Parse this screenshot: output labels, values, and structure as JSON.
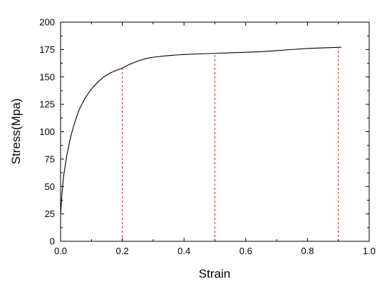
{
  "chart_data": {
    "type": "line",
    "title": "",
    "xlabel": "Strain",
    "ylabel": "Stress(Mpa)",
    "xlim": [
      0.0,
      1.0
    ],
    "ylim": [
      0,
      200
    ],
    "xticks": [
      "0.0",
      "0.2",
      "0.4",
      "0.6",
      "0.8",
      "1.0"
    ],
    "yticks": [
      "0",
      "25",
      "50",
      "75",
      "100",
      "125",
      "150",
      "175",
      "200"
    ],
    "grid": false,
    "legend": "none",
    "series": [
      {
        "color": "#000000",
        "x": [
          0.0,
          0.005,
          0.01,
          0.02,
          0.03,
          0.04,
          0.05,
          0.06,
          0.08,
          0.1,
          0.12,
          0.14,
          0.16,
          0.18,
          0.2,
          0.22,
          0.25,
          0.28,
          0.3,
          0.35,
          0.4,
          0.45,
          0.5,
          0.55,
          0.6,
          0.65,
          0.7,
          0.75,
          0.8,
          0.85,
          0.9,
          0.91
        ],
        "y": [
          25,
          45,
          60,
          78,
          92,
          103,
          112,
          120,
          131,
          139,
          145,
          150,
          153.5,
          156,
          158,
          161,
          164.5,
          167,
          168,
          169.5,
          170.5,
          171,
          171.5,
          172,
          172.5,
          173,
          174,
          175,
          176,
          176.5,
          177,
          177.2
        ]
      }
    ],
    "reference_lines": {
      "color": "#ff0000",
      "style": "dashed",
      "points": [
        {
          "x": 0.2,
          "y": 158
        },
        {
          "x": 0.5,
          "y": 171.5
        },
        {
          "x": 0.9,
          "y": 177
        }
      ]
    }
  }
}
